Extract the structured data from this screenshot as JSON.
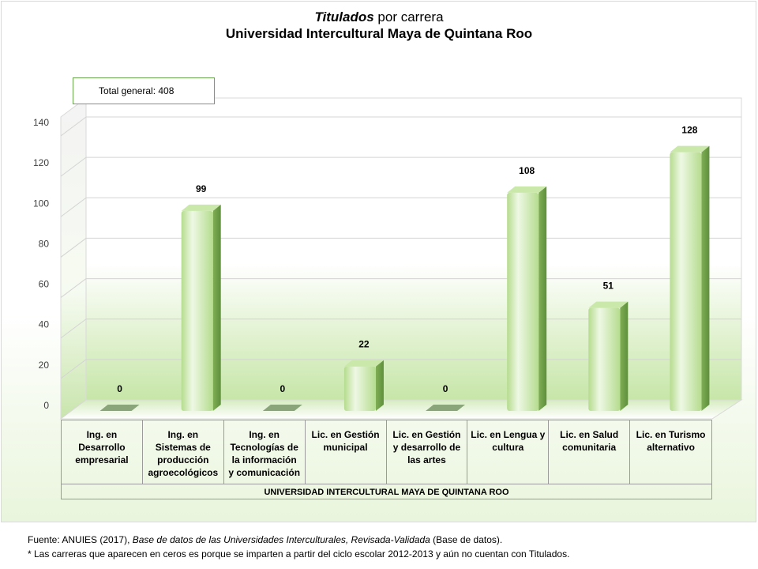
{
  "title": {
    "italic_part": "Titulados",
    "rest": " por carrera",
    "subtitle": "Universidad Intercultural Maya de Quintana Roo"
  },
  "total_box": "Total  general: 408",
  "chart_data": {
    "type": "bar",
    "categories": [
      "Ing. en Desarrollo empresarial",
      "Ing. en Sistemas de producción agroecológicos",
      "Ing. en Tecnologías de la información y comunicación",
      "Lic. en Gestión municipal",
      "Lic. en Gestión y desarrollo de las artes",
      "Lic. en Lengua y cultura",
      "Lic. en Salud comunitaria",
      "Lic. en Turismo alternativo"
    ],
    "category_lines": [
      [
        "Ing. en",
        "Desarrollo",
        "empresarial"
      ],
      [
        "Ing. en",
        "Sistemas de",
        "producción",
        "agroecológicos"
      ],
      [
        "Ing. en",
        "Tecnologías de",
        "la información",
        "y comunicación"
      ],
      [
        "Lic. en Gestión",
        "municipal"
      ],
      [
        "Lic. en Gestión",
        "y desarrollo de",
        "las artes"
      ],
      [
        "Lic. en Lengua y",
        "cultura"
      ],
      [
        "Lic. en Salud",
        "comunitaria"
      ],
      [
        "Lic. en Turismo",
        "alternativo"
      ]
    ],
    "values": [
      0,
      99,
      0,
      22,
      0,
      108,
      51,
      128
    ],
    "data_labels": [
      "0",
      "99",
      "0",
      "22",
      "0",
      "108",
      "51",
      "128"
    ],
    "group_label": "UNIVERSIDAD INTERCULTURAL MAYA DE QUINTANA ROO",
    "y_ticks": [
      0,
      20,
      40,
      60,
      80,
      100,
      120,
      140
    ],
    "ylim": [
      0,
      140
    ],
    "grid": true,
    "legend": "none",
    "bar_color": "#b5dc8e",
    "bar_highlight": "#eef8e4",
    "bar_shadow": "#7fae55"
  },
  "footnotes": {
    "line1_prefix": "Fuente: ANUIES (2017), ",
    "line1_italic": "Base de datos de las Universidades  Interculturales,  Revisada-Validada",
    "line1_suffix": "  (Base de datos).",
    "line2": "* Las carreras  que  aparecen  en ceros es porque  se imparten  a partir del ciclo escolar 2012-2013  y aún no cuentan con Titulados."
  }
}
